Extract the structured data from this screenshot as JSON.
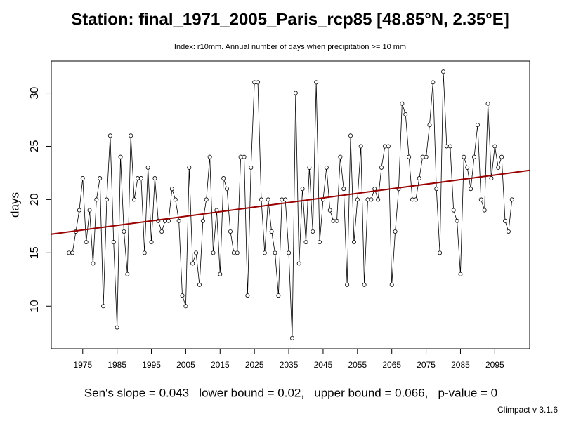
{
  "chart_data": {
    "type": "line",
    "title": "Station: final_1971_2005_Paris_rcp85 [48.85°N, 2.35°E]",
    "subtitle": "Index: r10mm. Annual number of days when precipitation >= 10 mm",
    "y_label": "days",
    "footer": "Sen's slope = 0.043   lower bound = 0.02,   upper bound = 0.066,   p-value = 0",
    "version": "Climpact v 3.1.6",
    "x": [
      1971,
      1972,
      1973,
      1974,
      1975,
      1976,
      1977,
      1978,
      1979,
      1980,
      1981,
      1982,
      1983,
      1984,
      1985,
      1986,
      1987,
      1988,
      1989,
      1990,
      1991,
      1992,
      1993,
      1994,
      1995,
      1996,
      1997,
      1998,
      1999,
      2000,
      2001,
      2002,
      2003,
      2004,
      2005,
      2006,
      2007,
      2008,
      2009,
      2010,
      2011,
      2012,
      2013,
      2014,
      2015,
      2016,
      2017,
      2018,
      2019,
      2020,
      2021,
      2022,
      2023,
      2024,
      2025,
      2026,
      2027,
      2028,
      2029,
      2030,
      2031,
      2032,
      2033,
      2034,
      2035,
      2036,
      2037,
      2038,
      2039,
      2040,
      2041,
      2042,
      2043,
      2044,
      2045,
      2046,
      2047,
      2048,
      2049,
      2050,
      2051,
      2052,
      2053,
      2054,
      2055,
      2056,
      2057,
      2058,
      2059,
      2060,
      2061,
      2062,
      2063,
      2064,
      2065,
      2066,
      2067,
      2068,
      2069,
      2070,
      2071,
      2072,
      2073,
      2074,
      2075,
      2076,
      2077,
      2078,
      2079,
      2080,
      2081,
      2082,
      2083,
      2084,
      2085,
      2086,
      2087,
      2088,
      2089,
      2090,
      2091,
      2092,
      2093,
      2094,
      2095,
      2096,
      2097,
      2098,
      2099,
      2100
    ],
    "series": [
      {
        "name": "r10mm",
        "color": "#000000",
        "values": [
          15,
          15,
          17,
          19,
          22,
          16,
          19,
          14,
          20,
          22,
          10,
          20,
          26,
          16,
          8,
          24,
          17,
          13,
          26,
          20,
          22,
          22,
          15,
          23,
          16,
          22,
          18,
          17,
          18,
          18,
          21,
          20,
          18,
          11,
          10,
          23,
          14,
          15,
          12,
          18,
          20,
          24,
          15,
          19,
          13,
          22,
          21,
          17,
          15,
          15,
          24,
          24,
          11,
          23,
          31,
          31,
          20,
          15,
          20,
          17,
          15,
          11,
          20,
          20,
          15,
          7,
          30,
          14,
          21,
          16,
          23,
          17,
          31,
          16,
          20,
          23,
          19,
          18,
          18,
          24,
          21,
          12,
          26,
          16,
          20,
          25,
          12,
          20,
          20,
          21,
          20,
          23,
          25,
          25,
          12,
          17,
          21,
          29,
          28,
          24,
          20,
          20,
          22,
          24,
          24,
          27,
          31,
          21,
          15,
          32,
          25,
          25,
          19,
          18,
          13,
          24,
          23,
          21,
          24,
          27,
          20,
          19,
          29,
          22,
          25,
          23,
          24,
          18,
          17,
          20
        ]
      }
    ],
    "trend": {
      "x": [
        1965.84,
        2105.16
      ],
      "values": [
        16.75,
        22.74
      ],
      "color": "#990000"
    },
    "xlim": [
      1965.84,
      2105.16
    ],
    "ylim": [
      6,
      33
    ],
    "xticks": [
      1975,
      1985,
      1995,
      2005,
      2015,
      2025,
      2035,
      2045,
      2055,
      2065,
      2075,
      2085,
      2095
    ],
    "yticks": [
      10,
      15,
      20,
      25,
      30
    ]
  }
}
